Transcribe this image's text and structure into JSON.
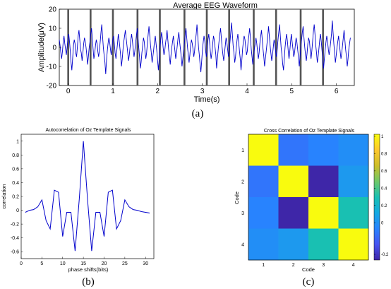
{
  "panel_labels": [
    "(a)",
    "(b)",
    "(c)"
  ],
  "chart_data": [
    {
      "type": "line",
      "title": "Average EEG Waveform",
      "xlabel": "Time(s)",
      "ylabel": "Amplitude(μV)",
      "xlim": [
        -0.2,
        6.4
      ],
      "ylim": [
        -20,
        20
      ],
      "xticks": [
        0,
        1,
        2,
        3,
        4,
        5,
        6
      ],
      "yticks": [
        -20,
        -10,
        0,
        10,
        20
      ],
      "grid": false,
      "markers_x": [
        0,
        0.5,
        1.0,
        1.55,
        2.05,
        2.6,
        3.1,
        3.6,
        4.15,
        4.65,
        5.2,
        5.7
      ],
      "series": [
        {
          "color": "#0000cc",
          "x_start": -0.2,
          "x_step": 0.0176,
          "y": [
            4,
            1,
            -3,
            -6,
            -2,
            3,
            6,
            2,
            -1,
            -4,
            0,
            5,
            7,
            3,
            -2,
            -8,
            -12,
            -6,
            1,
            4,
            2,
            -3,
            -5,
            0,
            6,
            9,
            4,
            -1,
            -3,
            -7,
            -3,
            2,
            5,
            3,
            0,
            -4,
            -9,
            -5,
            0,
            3,
            7,
            10,
            5,
            -1,
            -6,
            -3,
            1,
            4,
            2,
            -2,
            -5,
            -2,
            3,
            8,
            12,
            6,
            0,
            -4,
            -8,
            -14,
            -7,
            -2,
            2,
            5,
            3,
            -1,
            -4,
            0,
            4,
            6,
            2,
            -3,
            -6,
            -2,
            2,
            7,
            4,
            0,
            -4,
            -10,
            -6,
            -1,
            3,
            6,
            9,
            5,
            1,
            -3,
            -7,
            -4,
            0,
            4,
            7,
            3,
            -1,
            -5,
            -2,
            2,
            6,
            10,
            5,
            0,
            -5,
            -11,
            -8,
            -3,
            1,
            5,
            3,
            -2,
            -6,
            -3,
            2,
            7,
            11,
            6,
            1,
            -3,
            -8,
            -5,
            -1,
            3,
            6,
            2,
            -2,
            -7,
            -12,
            -6,
            0,
            4,
            8,
            5,
            0,
            -4,
            -2,
            2,
            5,
            9,
            4,
            -1,
            -5,
            -9,
            -4,
            0,
            3,
            6,
            2,
            -2,
            -6,
            -3,
            1,
            5,
            8,
            3,
            -1,
            -5,
            -10,
            -6,
            -2,
            2,
            6,
            10,
            5,
            0,
            -4,
            -8,
            -4,
            1,
            4,
            2,
            -1,
            -5,
            -2,
            3,
            7,
            12,
            6,
            0,
            -4,
            -9,
            -13,
            -7,
            -1,
            3,
            6,
            3,
            -2,
            -5,
            -1,
            4,
            7,
            3,
            -2,
            -6,
            -3,
            2,
            6,
            4,
            0,
            -4,
            -11,
            -6,
            -1,
            3,
            7,
            10,
            5,
            0,
            -4,
            -7,
            -3,
            1,
            5,
            3,
            -1,
            -5,
            -2,
            3,
            8,
            13,
            7,
            1,
            -3,
            -8,
            -5,
            0,
            4,
            7,
            3,
            -2,
            -6,
            -12,
            -7,
            -1,
            3,
            6,
            4,
            0,
            -4,
            -2,
            3,
            6,
            10,
            5,
            -1,
            -5,
            -9,
            -5,
            -1,
            2,
            5,
            2,
            -2,
            -6,
            -3,
            2,
            6,
            9,
            4,
            -1,
            -5,
            -10,
            -6,
            -2,
            2,
            6,
            11,
            6,
            1,
            -3,
            -7,
            -4,
            0,
            4,
            2,
            -2,
            -5,
            -1,
            4,
            8,
            12,
            6,
            0,
            -4,
            -9,
            -12,
            -6,
            0,
            4,
            7,
            3,
            -2,
            -6,
            -2,
            3,
            7,
            3,
            -1,
            -5,
            -3,
            1,
            5,
            3,
            -1,
            -5,
            -10,
            -5,
            0,
            4,
            8,
            11,
            5,
            0,
            -4,
            -7,
            -3,
            2,
            5,
            3,
            -2,
            -6,
            -2,
            3,
            8,
            12,
            7,
            1,
            -3,
            -8,
            -5,
            -1,
            4,
            7,
            3,
            -2,
            -7,
            -11,
            -6,
            -1,
            3,
            6,
            3,
            -1,
            -4,
            -1,
            3,
            7,
            14,
            8,
            2,
            -3,
            -8,
            -4,
            0,
            3,
            6,
            2,
            -2,
            -6,
            -3,
            1,
            5,
            9,
            4,
            -1,
            -5,
            -10,
            -6,
            -1,
            2,
            5
          ]
        }
      ]
    },
    {
      "type": "line",
      "title": "Autocorrelation of Oz Template Signals",
      "xlabel": "phase shifts(bits)",
      "ylabel": "correlation",
      "xlim": [
        0,
        32
      ],
      "ylim": [
        -0.7,
        1.1
      ],
      "xticks": [
        0,
        5,
        10,
        15,
        20,
        25,
        30
      ],
      "yticks": [
        -0.6,
        -0.4,
        -0.2,
        0,
        0.2,
        0.4,
        0.6,
        0.8,
        1
      ],
      "grid": false,
      "series": [
        {
          "color": "#0000cc",
          "x": [
            1,
            2,
            3,
            4,
            5,
            6,
            7,
            8,
            9,
            10,
            11,
            12,
            13,
            14,
            15,
            16,
            17,
            18,
            19,
            20,
            21,
            22,
            23,
            24,
            25,
            26,
            27,
            28,
            29,
            30,
            31
          ],
          "values": [
            -0.03,
            0.0,
            0.01,
            0.05,
            0.15,
            -0.15,
            -0.27,
            0.29,
            0.26,
            -0.38,
            -0.03,
            -0.03,
            -0.59,
            0.16,
            1.0,
            0.16,
            -0.59,
            -0.03,
            -0.03,
            -0.38,
            0.26,
            0.29,
            -0.27,
            -0.15,
            0.15,
            0.05,
            0.01,
            0.0,
            -0.02,
            -0.03,
            -0.04
          ]
        }
      ]
    },
    {
      "type": "heatmap",
      "title": "Cross Correlation of Oz Template Signals",
      "xlabel": "Code",
      "ylabel": "Code",
      "x_categories": [
        "1",
        "2",
        "3",
        "4"
      ],
      "y_categories": [
        "1",
        "2",
        "3",
        "4"
      ],
      "values": [
        [
          1.0,
          -0.1,
          -0.05,
          0.0
        ],
        [
          -0.1,
          1.0,
          -0.4,
          0.05
        ],
        [
          -0.05,
          -0.4,
          1.0,
          0.3
        ],
        [
          0.0,
          0.05,
          0.3,
          1.0
        ]
      ],
      "colorbar": {
        "range": [
          -0.4,
          1.0
        ],
        "ticks": [
          1,
          0.8,
          0.6,
          0.4,
          0.2,
          0,
          -0.2
        ],
        "tick_labels": [
          "1",
          "0.8",
          "0.6",
          "0.4",
          "0.2",
          "0",
          "-0.2"
        ]
      }
    }
  ]
}
